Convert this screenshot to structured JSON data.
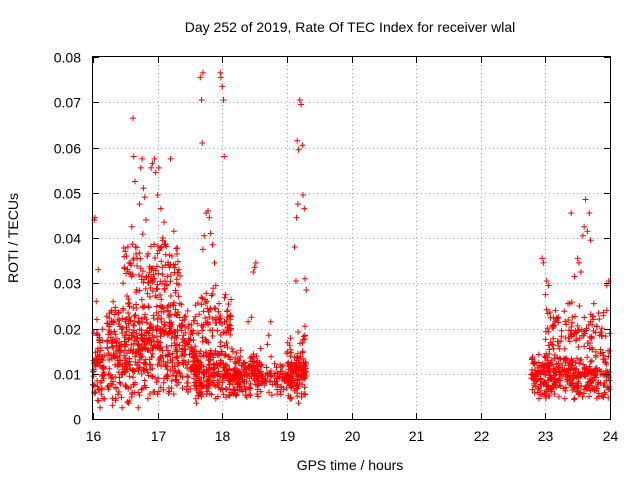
{
  "chart_data": {
    "type": "scatter",
    "title": "Day 252 of 2019, Rate Of TEC Index for receiver wlal",
    "xlabel": "GPS time / hours",
    "ylabel": "ROTI / TECUs",
    "xlim": [
      16,
      24
    ],
    "ylim": [
      0,
      0.08
    ],
    "xticks": [
      16,
      17,
      18,
      19,
      20,
      21,
      22,
      23,
      24
    ],
    "yticks": [
      0,
      0.01,
      0.02,
      0.03,
      0.04,
      0.05,
      0.06,
      0.07,
      0.08
    ],
    "xtick_labels": [
      "16",
      "17",
      "18",
      "19",
      "20",
      "21",
      "22",
      "23",
      "24"
    ],
    "ytick_labels": [
      "0",
      "0.01",
      "0.02",
      "0.03",
      "0.04",
      "0.05",
      "0.06",
      "0.07",
      "0.08"
    ],
    "grid": true,
    "marker": "+",
    "marker_color": "#ff0000",
    "series": [
      {
        "name": "ROTI",
        "points": [
          [
            16.02,
            0.044
          ],
          [
            16.03,
            0.0445
          ],
          [
            16.05,
            0.026
          ],
          [
            16.06,
            0.022
          ],
          [
            16.08,
            0.033
          ],
          [
            16.1,
            0.018
          ],
          [
            16.12,
            0.008
          ],
          [
            16.14,
            0.0095
          ],
          [
            16.16,
            0.011
          ],
          [
            16.02,
            0.006
          ],
          [
            16.04,
            0.012
          ],
          [
            16.07,
            0.015
          ],
          [
            16.09,
            0.004
          ],
          [
            16.11,
            0.0025
          ],
          [
            16.13,
            0.0055
          ],
          [
            16.15,
            0.013
          ],
          [
            16.06,
            0.019
          ],
          [
            16.03,
            0.0075
          ],
          [
            16.25,
            0.014
          ],
          [
            16.3,
            0.016
          ],
          [
            16.35,
            0.024
          ],
          [
            16.28,
            0.009
          ],
          [
            16.4,
            0.012
          ],
          [
            16.45,
            0.019
          ],
          [
            16.5,
            0.0215
          ],
          [
            16.55,
            0.0265
          ],
          [
            16.48,
            0.0105
          ],
          [
            16.52,
            0.036
          ],
          [
            16.54,
            0.038
          ],
          [
            16.56,
            0.0345
          ],
          [
            16.58,
            0.032
          ],
          [
            16.6,
            0.0425
          ],
          [
            16.62,
            0.0665
          ],
          [
            16.63,
            0.058
          ],
          [
            16.65,
            0.0525
          ],
          [
            16.67,
            0.0245
          ],
          [
            16.7,
            0.0215
          ],
          [
            16.72,
            0.0475
          ],
          [
            16.74,
            0.0555
          ],
          [
            16.76,
            0.0575
          ],
          [
            16.78,
            0.051
          ],
          [
            16.8,
            0.049
          ],
          [
            16.82,
            0.044
          ],
          [
            16.84,
            0.036
          ],
          [
            16.86,
            0.0315
          ],
          [
            16.88,
            0.027
          ],
          [
            16.9,
            0.0555
          ],
          [
            16.92,
            0.0565
          ],
          [
            16.95,
            0.0575
          ],
          [
            16.97,
            0.0545
          ],
          [
            17.0,
            0.0495
          ],
          [
            17.02,
            0.0555
          ],
          [
            17.05,
            0.0465
          ],
          [
            17.08,
            0.04
          ],
          [
            17.1,
            0.0435
          ],
          [
            17.12,
            0.0385
          ],
          [
            17.15,
            0.0315
          ],
          [
            17.2,
            0.0575
          ],
          [
            17.25,
            0.0415
          ],
          [
            17.3,
            0.0365
          ],
          [
            16.3,
            0.003
          ],
          [
            16.35,
            0.0045
          ],
          [
            16.4,
            0.006
          ],
          [
            16.45,
            0.0025
          ],
          [
            16.5,
            0.0075
          ],
          [
            16.55,
            0.0035
          ],
          [
            16.6,
            0.0055
          ],
          [
            16.65,
            0.008
          ],
          [
            16.7,
            0.0025
          ],
          [
            16.75,
            0.0065
          ],
          [
            16.8,
            0.0085
          ],
          [
            16.85,
            0.0045
          ],
          [
            16.9,
            0.0095
          ],
          [
            16.95,
            0.006
          ],
          [
            17.0,
            0.0055
          ],
          [
            17.05,
            0.007
          ],
          [
            17.1,
            0.009
          ],
          [
            17.15,
            0.011
          ],
          [
            17.2,
            0.013
          ],
          [
            17.25,
            0.0055
          ],
          [
            17.3,
            0.0075
          ],
          [
            17.35,
            0.0095
          ],
          [
            17.4,
            0.012
          ],
          [
            17.45,
            0.0065
          ],
          [
            16.3,
            0.017
          ],
          [
            16.4,
            0.021
          ],
          [
            16.5,
            0.0135
          ],
          [
            16.6,
            0.0185
          ],
          [
            16.7,
            0.0155
          ],
          [
            16.8,
            0.0225
          ],
          [
            16.9,
            0.0175
          ],
          [
            17.0,
            0.0205
          ],
          [
            17.1,
            0.0245
          ],
          [
            17.2,
            0.0195
          ],
          [
            17.3,
            0.0165
          ],
          [
            17.4,
            0.0185
          ],
          [
            17.5,
            0.0155
          ],
          [
            17.55,
            0.0135
          ],
          [
            17.6,
            0.0095
          ],
          [
            17.65,
            0.008
          ],
          [
            17.7,
            0.0375
          ],
          [
            17.72,
            0.0405
          ],
          [
            17.68,
            0.0705
          ],
          [
            17.66,
            0.0755
          ],
          [
            17.7,
            0.0765
          ],
          [
            17.69,
            0.061
          ],
          [
            17.75,
            0.0455
          ],
          [
            17.78,
            0.046
          ],
          [
            17.8,
            0.0445
          ],
          [
            17.82,
            0.041
          ],
          [
            17.85,
            0.0385
          ],
          [
            17.88,
            0.0345
          ],
          [
            17.9,
            0.0295
          ],
          [
            17.95,
            0.0255
          ],
          [
            17.97,
            0.0765
          ],
          [
            17.98,
            0.0755
          ],
          [
            18.0,
            0.0735
          ],
          [
            18.02,
            0.0705
          ],
          [
            18.03,
            0.058
          ],
          [
            18.05,
            0.0275
          ],
          [
            18.08,
            0.0225
          ],
          [
            18.1,
            0.0195
          ],
          [
            18.15,
            0.0155
          ],
          [
            18.2,
            0.0135
          ],
          [
            18.25,
            0.0105
          ],
          [
            18.3,
            0.0095
          ],
          [
            17.6,
            0.0035
          ],
          [
            17.7,
            0.0055
          ],
          [
            17.8,
            0.0075
          ],
          [
            17.9,
            0.0045
          ],
          [
            18.0,
            0.0065
          ],
          [
            18.1,
            0.0085
          ],
          [
            18.2,
            0.0055
          ],
          [
            18.3,
            0.0065
          ],
          [
            18.35,
            0.0125
          ],
          [
            18.4,
            0.0215
          ],
          [
            18.45,
            0.0225
          ],
          [
            18.5,
            0.0335
          ],
          [
            18.52,
            0.0345
          ],
          [
            18.48,
            0.0325
          ],
          [
            18.55,
            0.0085
          ],
          [
            18.6,
            0.0105
          ],
          [
            18.65,
            0.0075
          ],
          [
            18.7,
            0.0165
          ],
          [
            18.72,
            0.0185
          ],
          [
            18.75,
            0.0215
          ],
          [
            18.8,
            0.0095
          ],
          [
            18.85,
            0.0055
          ],
          [
            18.9,
            0.0105
          ],
          [
            18.95,
            0.0065
          ],
          [
            19.0,
            0.0145
          ],
          [
            19.02,
            0.0125
          ],
          [
            19.05,
            0.0045
          ],
          [
            19.08,
            0.0085
          ],
          [
            19.1,
            0.0105
          ],
          [
            19.12,
            0.038
          ],
          [
            19.14,
            0.0305
          ],
          [
            19.15,
            0.0445
          ],
          [
            19.17,
            0.0475
          ],
          [
            19.16,
            0.0615
          ],
          [
            19.18,
            0.0595
          ],
          [
            19.2,
            0.0705
          ],
          [
            19.22,
            0.0695
          ],
          [
            19.24,
            0.0605
          ],
          [
            19.25,
            0.0495
          ],
          [
            19.27,
            0.0465
          ],
          [
            19.28,
            0.031
          ],
          [
            19.3,
            0.0285
          ],
          [
            19.25,
            0.0175
          ],
          [
            19.28,
            0.0205
          ],
          [
            19.22,
            0.0125
          ],
          [
            19.18,
            0.0035
          ],
          [
            19.15,
            0.0075
          ],
          [
            19.3,
            0.0095
          ],
          [
            22.8,
            0.0065
          ],
          [
            22.85,
            0.0095
          ],
          [
            22.9,
            0.0125
          ],
          [
            22.95,
            0.0355
          ],
          [
            22.97,
            0.0345
          ],
          [
            23.0,
            0.0275
          ],
          [
            23.02,
            0.0305
          ],
          [
            23.05,
            0.0295
          ],
          [
            23.08,
            0.0125
          ],
          [
            23.1,
            0.0165
          ],
          [
            23.12,
            0.0205
          ],
          [
            23.15,
            0.0215
          ],
          [
            23.2,
            0.0225
          ],
          [
            23.25,
            0.0195
          ],
          [
            23.3,
            0.0155
          ],
          [
            23.35,
            0.0255
          ],
          [
            23.4,
            0.0455
          ],
          [
            23.45,
            0.0315
          ],
          [
            23.5,
            0.0355
          ],
          [
            23.52,
            0.0345
          ],
          [
            23.55,
            0.0325
          ],
          [
            23.58,
            0.0405
          ],
          [
            23.6,
            0.0425
          ],
          [
            23.62,
            0.0485
          ],
          [
            23.65,
            0.0415
          ],
          [
            23.68,
            0.0455
          ],
          [
            23.7,
            0.0395
          ],
          [
            23.75,
            0.0255
          ],
          [
            23.8,
            0.0205
          ],
          [
            23.85,
            0.0145
          ],
          [
            23.9,
            0.0235
          ],
          [
            23.95,
            0.0295
          ],
          [
            23.98,
            0.0305
          ],
          [
            22.9,
            0.0045
          ],
          [
            23.0,
            0.0055
          ],
          [
            23.1,
            0.0065
          ],
          [
            23.2,
            0.0085
          ],
          [
            23.3,
            0.0045
          ],
          [
            23.4,
            0.0075
          ],
          [
            23.5,
            0.0095
          ],
          [
            23.6,
            0.0065
          ],
          [
            23.7,
            0.0085
          ],
          [
            23.8,
            0.0105
          ],
          [
            23.9,
            0.0075
          ],
          [
            23.95,
            0.0095
          ]
        ],
        "dense_regions": [
          {
            "x_range": [
              16.0,
              16.18
            ],
            "y_range": [
              0.002,
              0.022
            ],
            "count": 60
          },
          {
            "x_range": [
              16.2,
              17.6
            ],
            "y_range": [
              0.003,
              0.028
            ],
            "count": 520
          },
          {
            "x_range": [
              16.45,
              17.35
            ],
            "y_range": [
              0.022,
              0.042
            ],
            "count": 130
          },
          {
            "x_range": [
              17.55,
              18.6
            ],
            "y_range": [
              0.004,
              0.016
            ],
            "count": 360
          },
          {
            "x_range": [
              17.6,
              18.15
            ],
            "y_range": [
              0.012,
              0.03
            ],
            "count": 90
          },
          {
            "x_range": [
              18.6,
              19.3
            ],
            "y_range": [
              0.004,
              0.014
            ],
            "count": 140
          },
          {
            "x_range": [
              19.0,
              19.3
            ],
            "y_range": [
              0.003,
              0.02
            ],
            "count": 70
          },
          {
            "x_range": [
              22.78,
              24.0
            ],
            "y_range": [
              0.004,
              0.015
            ],
            "count": 360
          },
          {
            "x_range": [
              23.0,
              24.0
            ],
            "y_range": [
              0.012,
              0.026
            ],
            "count": 110
          }
        ]
      }
    ]
  }
}
